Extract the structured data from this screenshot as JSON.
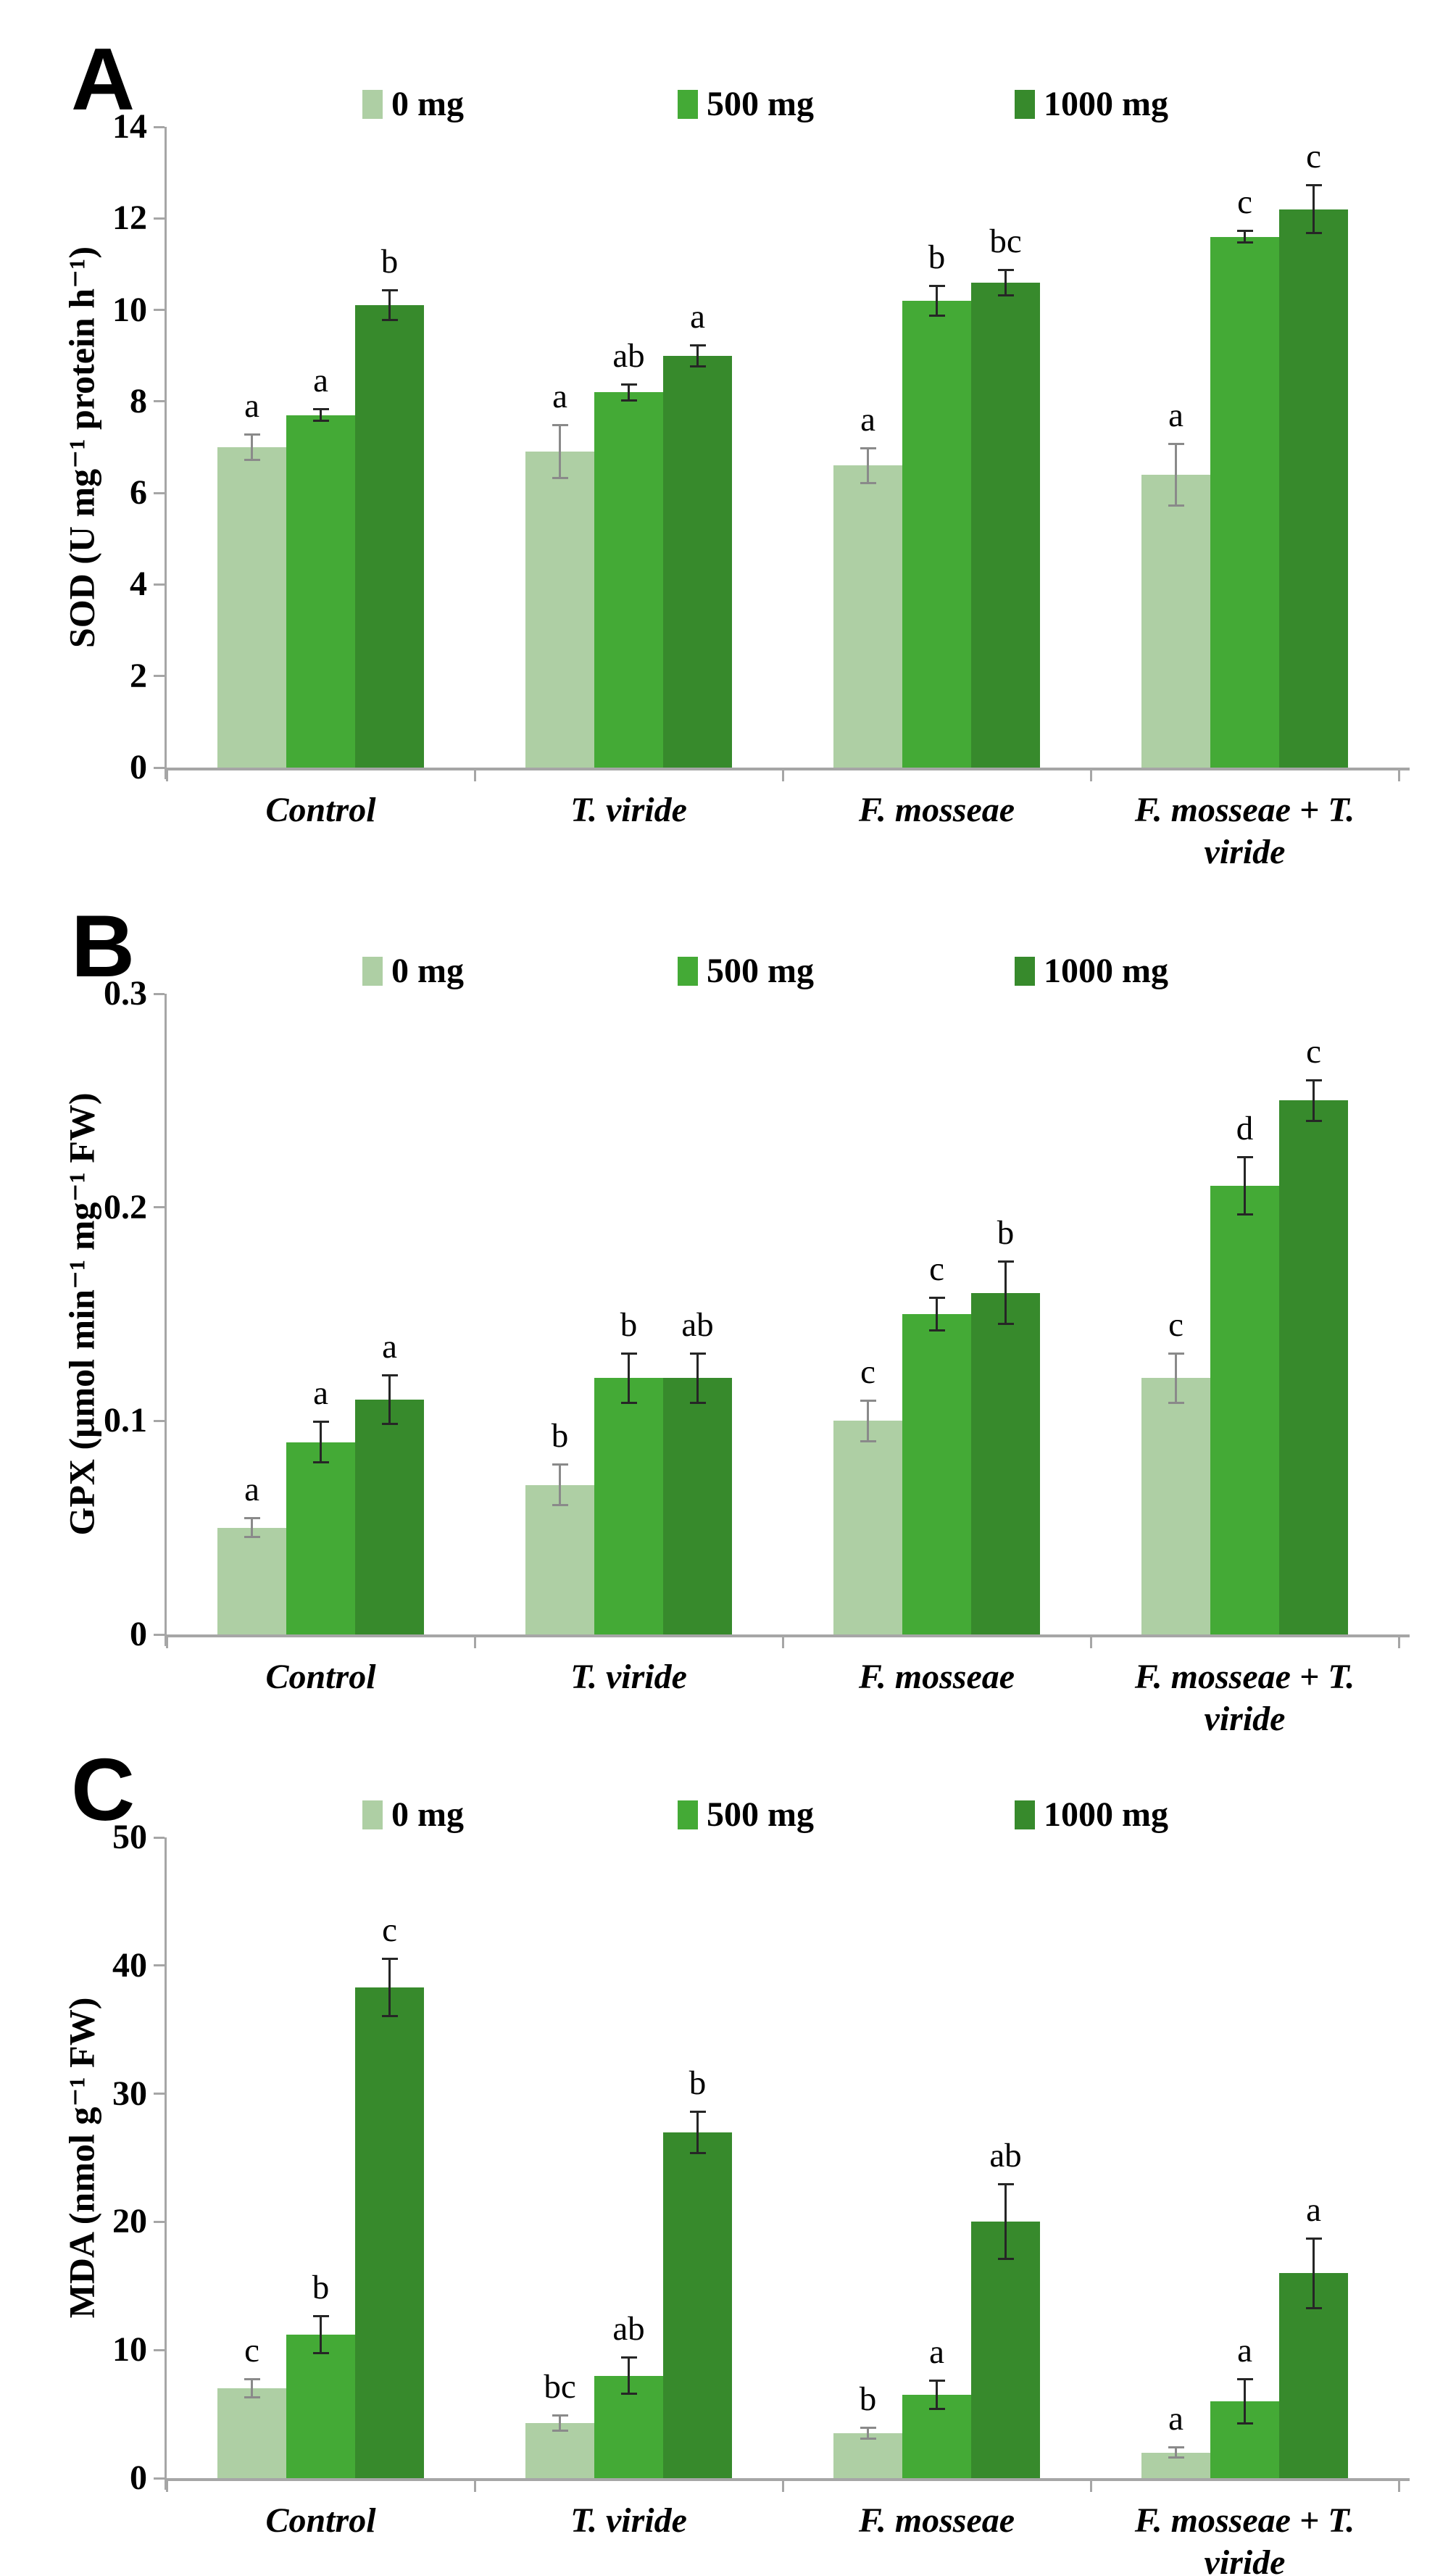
{
  "figure": {
    "description": "Three stacked bar-chart panels showing antioxidant enzyme and lipid peroxidation responses under 0, 500 and 1000 mg treatments for four inoculation groups",
    "colors": {
      "series": [
        "#aecfa4",
        "#44aa36",
        "#378a2c"
      ],
      "axis": "#a6a6a6",
      "error_light": "#8a8a8a",
      "error_dark": "#262626",
      "text": "#000000"
    }
  },
  "chart_data": [
    {
      "type": "bar",
      "panel": "A",
      "title": "",
      "xlabel": "",
      "ylabel": "SOD (U mg⁻¹ protein h⁻¹)",
      "ylim": [
        0,
        14
      ],
      "ytick_labels": [
        "0",
        "2",
        "4",
        "6",
        "8",
        "10",
        "12",
        "14"
      ],
      "grid": false,
      "legend_position": "top",
      "categories": [
        "Control",
        "T. viride",
        "F. mosseae",
        "F. mosseae + T. viride"
      ],
      "series": [
        {
          "name": "0 mg",
          "values": [
            7.0,
            6.9,
            6.6,
            6.4
          ],
          "errors": [
            0.3,
            0.6,
            0.4,
            0.7
          ],
          "letters": [
            "a",
            "a",
            "a",
            "a"
          ]
        },
        {
          "name": "500 mg",
          "values": [
            7.7,
            8.2,
            10.2,
            11.6
          ],
          "errors": [
            0.15,
            0.2,
            0.35,
            0.15
          ],
          "letters": [
            "a",
            "ab",
            "b",
            "c"
          ]
        },
        {
          "name": "1000 mg",
          "values": [
            10.1,
            9.0,
            10.6,
            12.2
          ],
          "errors": [
            0.35,
            0.25,
            0.3,
            0.55
          ],
          "letters": [
            "b",
            "a",
            "bc",
            "c"
          ]
        }
      ]
    },
    {
      "type": "bar",
      "panel": "B",
      "title": "",
      "xlabel": "",
      "ylabel": "GPX (μmol min⁻¹ mg⁻¹ FW)",
      "ylim": [
        0,
        0.3
      ],
      "ytick_labels": [
        "0",
        "0.1",
        "0.2",
        "0.3"
      ],
      "grid": false,
      "legend_position": "top",
      "categories": [
        "Control",
        "T. viride",
        "F. mosseae",
        "F. mosseae + T. viride"
      ],
      "series": [
        {
          "name": "0 mg",
          "values": [
            0.05,
            0.07,
            0.1,
            0.12
          ],
          "errors": [
            0.005,
            0.01,
            0.01,
            0.012
          ],
          "letters": [
            "a",
            "b",
            "c",
            "c"
          ]
        },
        {
          "name": "500 mg",
          "values": [
            0.09,
            0.12,
            0.15,
            0.21
          ],
          "errors": [
            0.01,
            0.012,
            0.008,
            0.014
          ],
          "letters": [
            "a",
            "b",
            "c",
            "d"
          ]
        },
        {
          "name": "1000 mg",
          "values": [
            0.11,
            0.12,
            0.16,
            0.25
          ],
          "errors": [
            0.012,
            0.012,
            0.015,
            0.01
          ],
          "letters": [
            "a",
            "ab",
            "b",
            "c"
          ]
        }
      ]
    },
    {
      "type": "bar",
      "panel": "C",
      "title": "",
      "xlabel": "",
      "ylabel": "MDA (nmol g⁻¹ FW)",
      "ylim": [
        0,
        50
      ],
      "ytick_labels": [
        "0",
        "10",
        "20",
        "30",
        "40",
        "50"
      ],
      "grid": false,
      "legend_position": "top",
      "categories": [
        "Control",
        "T. viride",
        "F. mosseae",
        "F. mosseae + T. viride"
      ],
      "series": [
        {
          "name": "0 mg",
          "values": [
            7.0,
            4.3,
            3.5,
            2.0
          ],
          "errors": [
            0.8,
            0.7,
            0.5,
            0.5
          ],
          "letters": [
            "c",
            "bc",
            "b",
            "a"
          ]
        },
        {
          "name": "500 mg",
          "values": [
            11.2,
            8.0,
            6.5,
            6.0
          ],
          "errors": [
            1.5,
            1.5,
            1.2,
            1.8
          ],
          "letters": [
            "b",
            "ab",
            "a",
            "a"
          ]
        },
        {
          "name": "1000 mg",
          "values": [
            38.3,
            27.0,
            20.0,
            16.0
          ],
          "errors": [
            2.3,
            1.7,
            3.0,
            2.8
          ],
          "letters": [
            "c",
            "b",
            "ab",
            "a"
          ]
        }
      ]
    }
  ]
}
